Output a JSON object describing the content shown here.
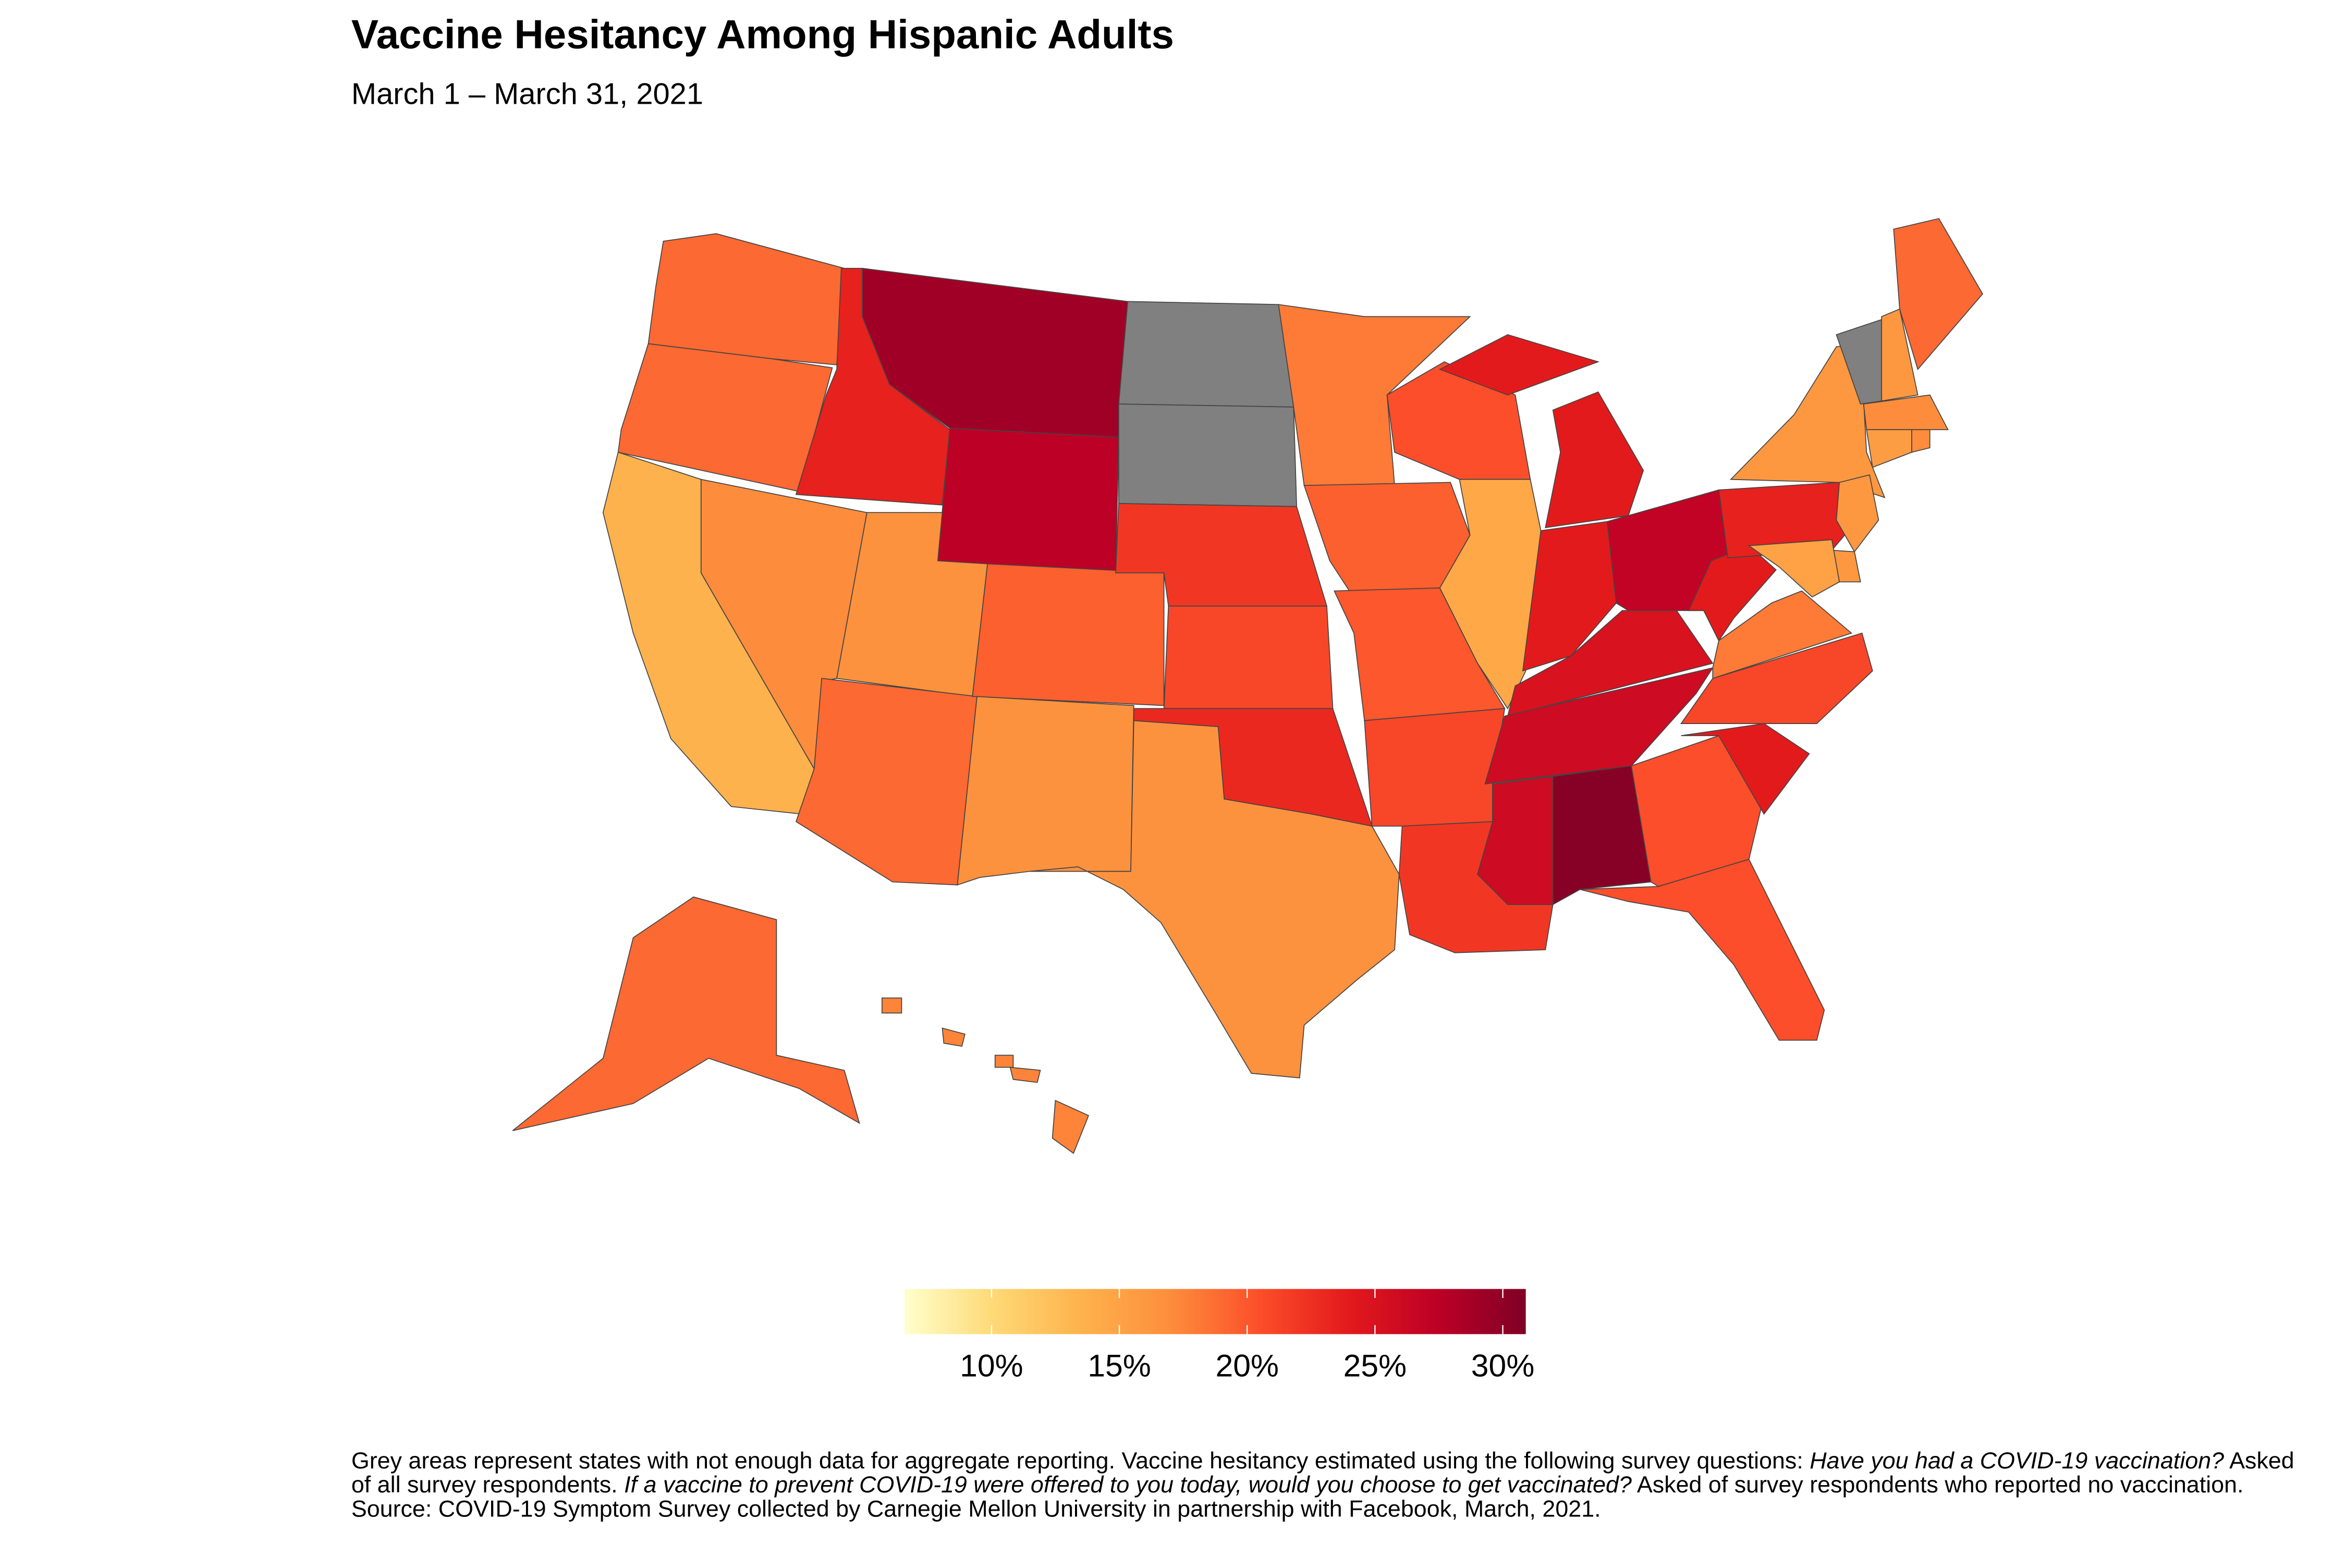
{
  "title": "Vaccine Hesitancy Among Hispanic Adults",
  "subtitle": "March 1 – March 31, 2021",
  "legend": {
    "range": [
      6.6,
      30.9
    ],
    "ticks": [
      10,
      15,
      20,
      25,
      30
    ],
    "tick_labels": [
      "10%",
      "15%",
      "20%",
      "25%",
      "30%"
    ],
    "colors": [
      "#ffffcc",
      "#fed976",
      "#feb24c",
      "#fd8d3c",
      "#fc4e2a",
      "#e31a1c",
      "#bd0026",
      "#800026"
    ]
  },
  "no_data_color": "#808080",
  "state_values": {
    "WA": 19,
    "OR": 19,
    "CA": 13.5,
    "NV": 17,
    "ID": 23.5,
    "MT": 29,
    "WY": 27.5,
    "UT": 16.5,
    "AZ": 19,
    "CO": 19.5,
    "NM": 16.5,
    "TX": 16.5,
    "ND": null,
    "SD": null,
    "NE": 22,
    "KS": 21,
    "OK": 23,
    "MN": 18,
    "IA": 19.5,
    "MO": 20,
    "AR": 21,
    "LA": 22,
    "WI": 20.5,
    "IL": 14.5,
    "MI": 24,
    "IN": 24,
    "OH": 27,
    "KY": 25,
    "TN": 26,
    "MS": 26,
    "AL": 30.5,
    "GA": 20.5,
    "FL": 20.5,
    "SC": 24,
    "NC": 21,
    "VA": 18,
    "WV": 24,
    "PA": 23.5,
    "NY": 16,
    "VT": null,
    "NH": 16,
    "ME": 19,
    "MA": 17,
    "CT": 15.5,
    "RI": 17,
    "NJ": 16,
    "DE": 16,
    "MD": 15,
    "AK": 19,
    "HI": 17.5
  },
  "note": {
    "p1": "Grey areas represent states with not enough data for aggregate reporting. Vaccine hesitancy estimated using the following survey questions: ",
    "q1": "Have you had a COVID-19 vaccination?",
    "p2": " Asked of all survey respondents. ",
    "q2": "If a vaccine to prevent COVID-19 were offered to you today, would you choose to get vaccinated?",
    "p3": " Asked of survey respondents who reported no vaccination. Source: COVID-19 Symptom Survey collected by Carnegie Mellon University in partnership with Facebook, March, 2021."
  }
}
